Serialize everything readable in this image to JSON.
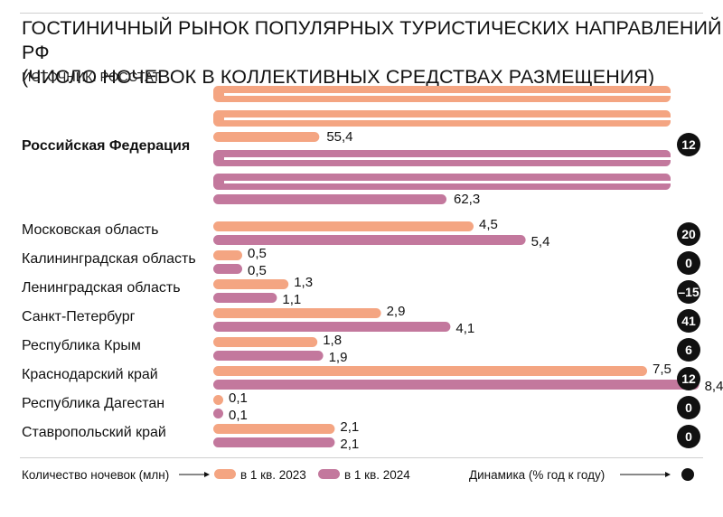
{
  "title_line1": "ГОСТИНИЧНЫЙ РЫНОК ПОПУЛЯРНЫХ ТУРИСТИЧЕСКИХ НАПРАВЛЕНИЙ РФ",
  "title_line2": "(ЧИСЛО НОЧЕВОК В КОЛЛЕКТИВНЫХ СРЕДСТВАХ РАЗМЕЩЕНИЯ)",
  "source": "ИСТОЧНИК: РОССТАТ.",
  "colors": {
    "y2023": "#f4a582",
    "y2024": "#c3789d",
    "badge": "#111111"
  },
  "legend": {
    "nights_label": "Количество ночевок (млн)",
    "y2023_label": "в 1 кв. 2023",
    "y2024_label": "в 1 кв. 2024",
    "dynamics_label": "Динамика (% год к году)"
  },
  "chart_data": {
    "type": "bar",
    "orientation": "horizontal",
    "categories": [
      "Российская Федерация",
      "Московская область",
      "Калининградская область",
      "Ленинградская область",
      "Санкт-Петербург",
      "Республика Крым",
      "Краснодарский край",
      "Республика Дагестан",
      "Ставропольский край"
    ],
    "series": [
      {
        "name": "в 1 кв. 2023",
        "values": [
          55.4,
          4.5,
          0.5,
          1.3,
          2.9,
          1.8,
          7.5,
          0.1,
          2.1
        ],
        "labels": [
          "55,4",
          "4,5",
          "0,5",
          "1,3",
          "2,9",
          "1,8",
          "7,5",
          "0,1",
          "2,1"
        ]
      },
      {
        "name": "в 1 кв. 2024",
        "values": [
          62.3,
          5.4,
          0.5,
          1.1,
          4.1,
          1.9,
          8.4,
          0.1,
          2.1
        ],
        "labels": [
          "62,3",
          "5,4",
          "0,5",
          "1,1",
          "4,1",
          "1,9",
          "8,4",
          "0,1",
          "2,1"
        ]
      }
    ],
    "dynamics": [
      "12",
      "20",
      "0",
      "–15",
      "41",
      "6",
      "12",
      "0",
      "0"
    ],
    "note": "Bars for Российская Федерация wrap as a serpentine line of rows"
  }
}
